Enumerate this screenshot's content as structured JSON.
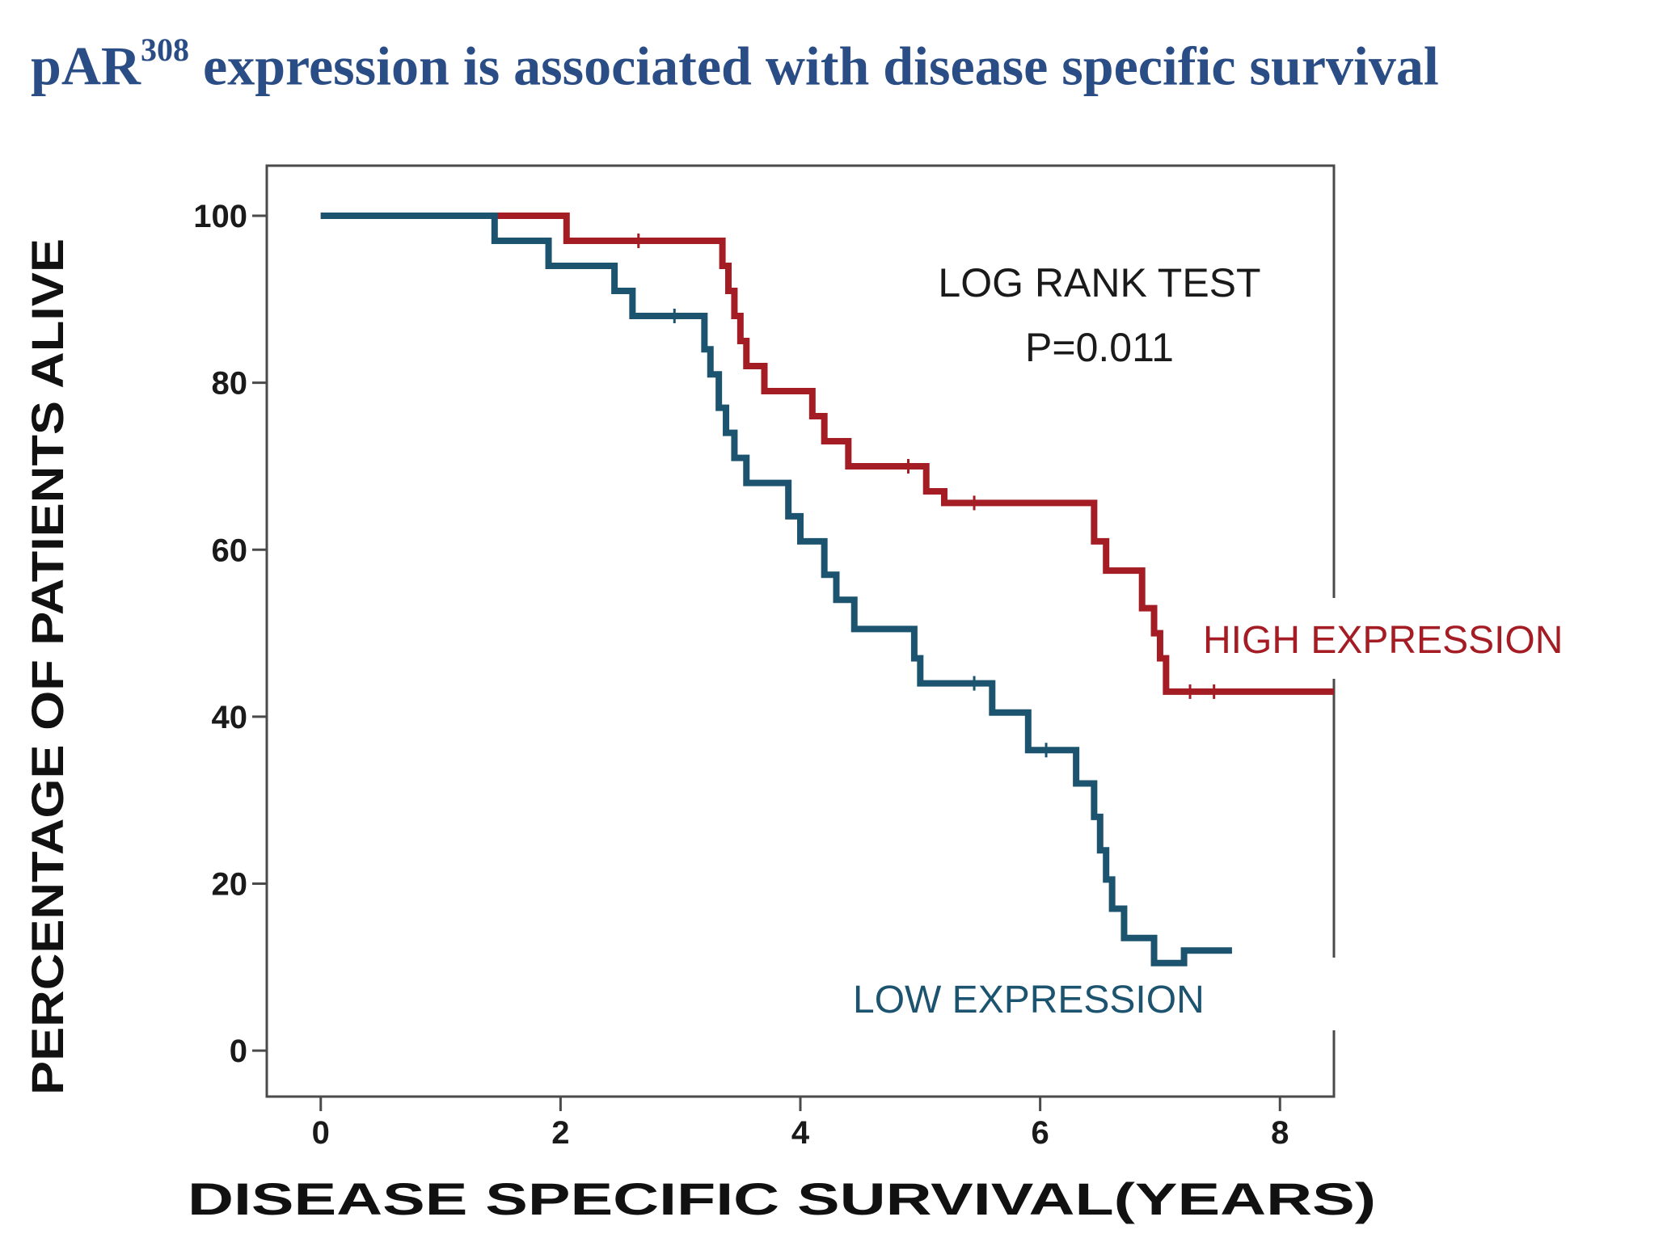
{
  "title": {
    "prefix": "pAR",
    "superscript": "308",
    "suffix": " expression is associated with disease specific survival"
  },
  "colors": {
    "title": "#2b4d86",
    "high": "#a41d24",
    "low": "#1c5470",
    "axis": "#4a4a4a"
  },
  "chart_data": {
    "type": "line",
    "subtype": "kaplan-meier-step",
    "xlabel": "DISEASE SPECIFIC SURVIVAL(YEARS)",
    "ylabel": "PERCENTAGE OF PATIENTS ALIVE",
    "xlim": [
      -0.45,
      8.45
    ],
    "ylim": [
      -5.5,
      106
    ],
    "xticks": [
      0,
      2,
      4,
      6,
      8
    ],
    "yticks": [
      0,
      20,
      40,
      60,
      80,
      100
    ],
    "grid": false,
    "annotation": {
      "line1": "LOG RANK TEST",
      "line2": "P=0.011"
    },
    "series": [
      {
        "name": "HIGH EXPRESSION",
        "color_key": "high",
        "x": [
          0,
          2.05,
          3.35,
          3.4,
          3.45,
          3.5,
          3.55,
          3.7,
          4.1,
          4.2,
          4.4,
          5.05,
          5.2,
          6.45,
          6.55,
          6.85,
          6.95,
          7.0,
          7.05,
          8.45
        ],
        "y": [
          100,
          97,
          94,
          91,
          88,
          85,
          82,
          79,
          76,
          73,
          70,
          67,
          65.6,
          61,
          57.5,
          53,
          50,
          47,
          43,
          43
        ],
        "censored_x": [
          2.65,
          4.9,
          5.45,
          7.25,
          7.45
        ]
      },
      {
        "name": "LOW EXPRESSION",
        "color_key": "low",
        "x": [
          0,
          1.45,
          1.9,
          2.45,
          2.6,
          3.2,
          3.25,
          3.32,
          3.38,
          3.45,
          3.55,
          3.9,
          4.0,
          4.2,
          4.3,
          4.45,
          4.95,
          5.0,
          5.6,
          5.9,
          6.3,
          6.45,
          6.5,
          6.55,
          6.6,
          6.7,
          6.95,
          7.2,
          7.3,
          7.6
        ],
        "y": [
          100,
          97,
          94,
          91,
          88,
          84,
          81,
          77,
          74,
          71,
          68,
          64,
          61,
          57,
          54,
          50.5,
          47,
          44,
          40.5,
          36,
          32,
          28,
          24,
          20.5,
          17,
          13.5,
          10.5,
          12,
          12,
          12
        ],
        "censored_x": [
          2.95,
          5.45,
          6.05
        ]
      }
    ]
  }
}
